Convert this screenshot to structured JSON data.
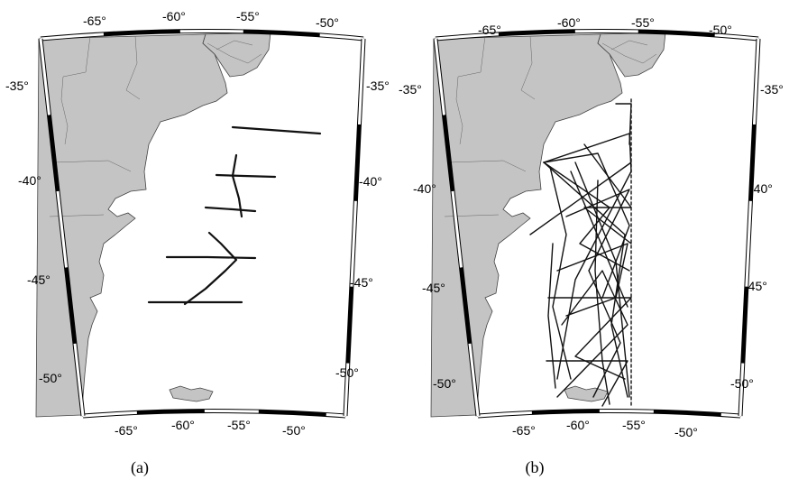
{
  "panels": [
    {
      "id": "a",
      "caption": "(a)",
      "lon_labels_top": [
        "-65°",
        "-60°",
        "-55°",
        "-50°"
      ],
      "lon_labels_bottom": [
        "-65°",
        "-60°",
        "-55°",
        "-50°"
      ],
      "lat_labels_left": [
        "-35°",
        "-40°",
        "-45°",
        "-50°"
      ],
      "lat_labels_right": [
        "-35°",
        "-40°",
        "-45°",
        "-50°"
      ]
    },
    {
      "id": "b",
      "caption": "(b)",
      "lon_labels_top": [
        "-65°",
        "-60°",
        "-55°",
        "-50°"
      ],
      "lon_labels_bottom": [
        "-65°",
        "-60°",
        "-55°",
        "-50°"
      ],
      "lat_labels_left": [
        "-35°",
        "-40°",
        "-45°",
        "-50°"
      ],
      "lat_labels_right": [
        "-35°",
        "-40°",
        "-45°",
        "-50°"
      ]
    }
  ],
  "colors": {
    "land": "#c4c4c4",
    "ocean": "#ffffff",
    "tracks": "#111111",
    "frame": "#000000"
  }
}
